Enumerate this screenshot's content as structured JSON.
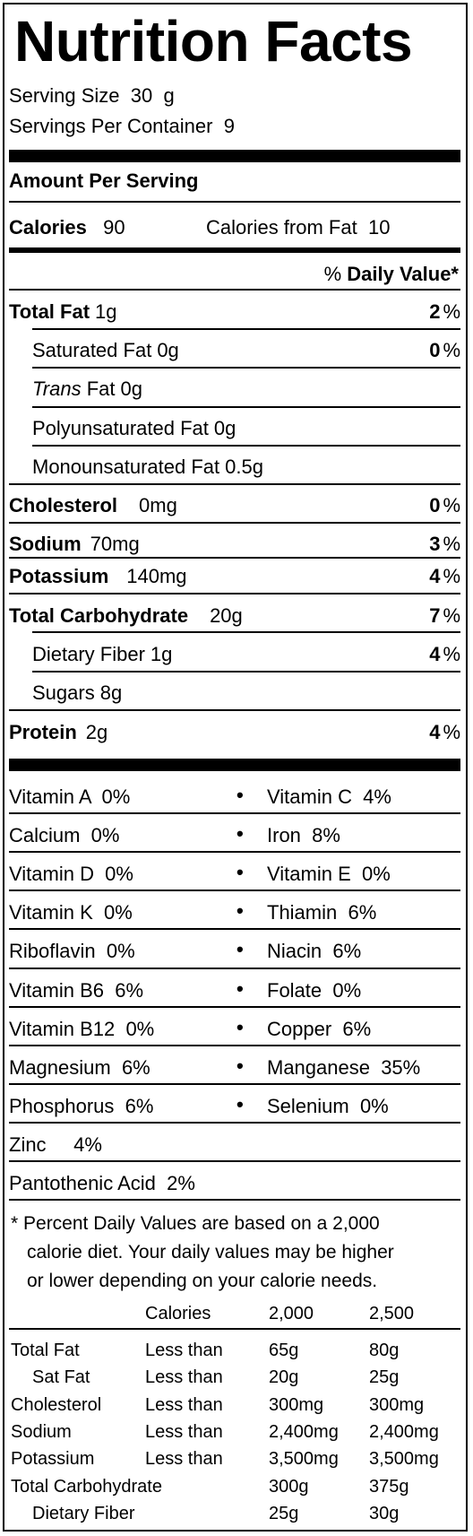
{
  "title": "Nutrition Facts",
  "serving_size_label": "Serving Size",
  "serving_size_value": "30  g",
  "servings_label": "Servings Per Container",
  "servings_value": "9",
  "amount_per_serving": "Amount Per Serving",
  "calories_label": "Calories",
  "calories_value": "90",
  "calories_fat_label": "Calories from Fat",
  "calories_fat_value": "10",
  "dv_pct": "%",
  "dv_label": "Daily Value*",
  "nutrients": [
    {
      "name": "Total Fat",
      "amount": "1g",
      "dv": "2",
      "pct": "%"
    },
    {
      "name": "Saturated Fat",
      "amount": "0g",
      "dv": "0",
      "pct": "%"
    },
    {
      "name_italic": "Trans",
      "name": "Fat",
      "amount": "0g"
    },
    {
      "name": "Polyunsaturated Fat",
      "amount": "0g"
    },
    {
      "name": "Monounsaturated Fat",
      "amount": "0.5g"
    },
    {
      "name": "Cholesterol",
      "amount": "0mg",
      "dv": "0",
      "pct": "%"
    },
    {
      "name": "Sodium",
      "amount": "70mg",
      "dv": "3",
      "pct": "%"
    },
    {
      "name": "Potassium",
      "amount": "140mg",
      "dv": "4",
      "pct": "%"
    },
    {
      "name": "Total Carbohydrate",
      "amount": "20g",
      "dv": "7",
      "pct": "%"
    },
    {
      "name": "Dietary Fiber",
      "amount": "1g",
      "dv": "4",
      "pct": "%"
    },
    {
      "name": "Sugars",
      "amount": "8g"
    },
    {
      "name": "Protein",
      "amount": "2g",
      "dv": "4",
      "pct": "%"
    }
  ],
  "vitamins": [
    {
      "left": "Vitamin A  0%",
      "right": "Vitamin C  4%"
    },
    {
      "left": "Calcium  0%",
      "right": "Iron  8%"
    },
    {
      "left": "Vitamin D  0%",
      "right": "Vitamin E  0%"
    },
    {
      "left": "Vitamin K  0%",
      "right": "Thiamin  6%"
    },
    {
      "left": "Riboflavin  0%",
      "right": "Niacin  6%"
    },
    {
      "left": "Vitamin B6  6%",
      "right": "Folate  0%"
    },
    {
      "left": "Vitamin B12  0%",
      "right": "Copper  6%"
    },
    {
      "left": "Magnesium  6%",
      "right": "Manganese  35%"
    },
    {
      "left": "Phosphorus  6%",
      "right": "Selenium  0%"
    },
    {
      "left": "Zinc     4%"
    },
    {
      "left": "Pantothenic Acid  2%"
    }
  ],
  "bullet": "•",
  "footnote": [
    "* Percent Daily Values are based on a 2,000",
    "calorie diet. Your daily values may be higher",
    "or lower depending on your calorie needs."
  ],
  "ref_header": {
    "calories": "Calories",
    "c2000": "2,000",
    "c2500": "2,500"
  },
  "ref_rows": [
    {
      "name": "Total Fat",
      "qual": "Less than",
      "v1": "65g",
      "v2": "80g"
    },
    {
      "name": "Sat Fat",
      "qual": "Less than",
      "v1": "20g",
      "v2": "25g"
    },
    {
      "name": "Cholesterol",
      "qual": "Less than",
      "v1": "300mg",
      "v2": "300mg"
    },
    {
      "name": "Sodium",
      "qual": "Less than",
      "v1": "2,400mg",
      "v2": "2,400mg"
    },
    {
      "name": "Potassium",
      "qual": "Less than",
      "v1": "3,500mg",
      "v2": "3,500mg"
    },
    {
      "name": "Total Carbohydrate",
      "qual": "",
      "v1": "300g",
      "v2": "375g"
    },
    {
      "name": "Dietary Fiber",
      "qual": "",
      "v1": "25g",
      "v2": "30g"
    }
  ]
}
